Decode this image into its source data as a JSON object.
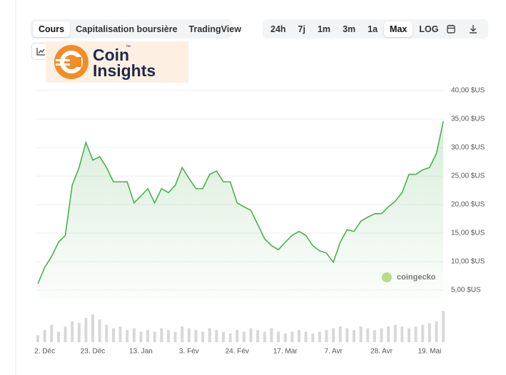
{
  "toolbar": {
    "tabs": [
      "Cours",
      "Capitalisation boursière",
      "TradingView"
    ],
    "active_tab": 0,
    "ranges": [
      "24h",
      "7j",
      "1m",
      "3m",
      "1a",
      "Max",
      "LOG"
    ],
    "active_range": 5
  },
  "logo": {
    "line1": "Coin",
    "line2": "Insights",
    "mark": "™"
  },
  "watermark": "coingecko",
  "chart_data": {
    "type": "line",
    "color": "#4caf50",
    "grid": true,
    "categories": [
      null,
      "2. Déc",
      null,
      null,
      null,
      null,
      null,
      null,
      "23. Déc",
      null,
      null,
      null,
      null,
      null,
      null,
      "13. Jan",
      null,
      null,
      null,
      null,
      null,
      null,
      "3. Fév",
      null,
      null,
      null,
      null,
      null,
      null,
      "24. Fév",
      null,
      null,
      null,
      null,
      null,
      null,
      "17. Mar",
      null,
      null,
      null,
      null,
      null,
      null,
      "7. Avr",
      null,
      null,
      null,
      null,
      null,
      null,
      "28. Avr",
      null,
      null,
      null,
      null,
      null,
      null,
      "19. Mai",
      null,
      null
    ],
    "values": [
      6.1,
      9,
      10.9,
      13.4,
      14.6,
      23.4,
      26.5,
      30.9,
      27.8,
      28.4,
      26.5,
      24,
      24,
      24,
      20.3,
      21.5,
      22.8,
      20.3,
      22.8,
      22.1,
      23.4,
      26.5,
      24.6,
      22.8,
      22.8,
      25.3,
      25.9,
      24,
      24,
      20.3,
      19.6,
      19,
      16.5,
      14,
      12.8,
      12.1,
      13.4,
      14.6,
      15.3,
      14.6,
      12.8,
      11.9,
      11.5,
      9.9,
      13.4,
      15.6,
      15.3,
      17.1,
      17.8,
      18.4,
      18.4,
      19.6,
      20.6,
      22.1,
      25.3,
      25.3,
      26.1,
      26.5,
      29,
      34.6
    ],
    "volumes": [
      20,
      35,
      50,
      30,
      45,
      60,
      55,
      70,
      80,
      65,
      50,
      40,
      45,
      35,
      40,
      30,
      35,
      30,
      40,
      35,
      30,
      45,
      40,
      35,
      30,
      40,
      35,
      30,
      25,
      35,
      30,
      40,
      35,
      30,
      40,
      30,
      25,
      30,
      35,
      30,
      25,
      30,
      35,
      40,
      45,
      40,
      35,
      45,
      40,
      35,
      40,
      45,
      50,
      45,
      40,
      45,
      50,
      55,
      60,
      90
    ],
    "ylim": [
      3.5,
      41
    ],
    "yticks": [
      {
        "value": 5,
        "label": "5,00 $US"
      },
      {
        "value": 10,
        "label": "10,00 $US"
      },
      {
        "value": 15,
        "label": "15,00 $US"
      },
      {
        "value": 20,
        "label": "20,00 $US"
      },
      {
        "value": 25,
        "label": "25,00 $US"
      },
      {
        "value": 30,
        "label": "30,00 $US"
      },
      {
        "value": 35,
        "label": "35,00 $US"
      },
      {
        "value": 40,
        "label": "40,00 $US"
      }
    ]
  }
}
